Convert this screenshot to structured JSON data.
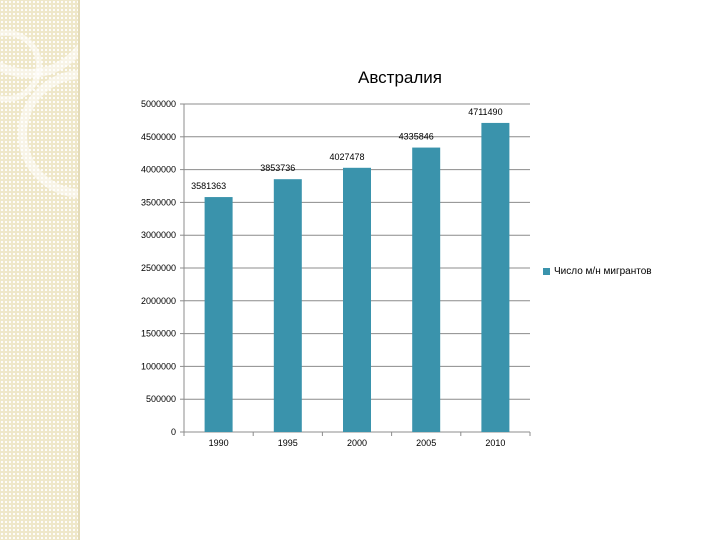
{
  "chart_data": {
    "type": "bar",
    "title": "Австралия",
    "categories": [
      "1990",
      "1995",
      "2000",
      "2005",
      "2010"
    ],
    "series": [
      {
        "name": "Число м/н мигрантов",
        "values": [
          3581363,
          3853736,
          4027478,
          4335846,
          4711490
        ],
        "color": "#3a93ac"
      }
    ],
    "y_ticks": [
      "0",
      "500000",
      "1000000",
      "1500000",
      "2000000",
      "2500000",
      "3000000",
      "3500000",
      "4000000",
      "4500000",
      "5000000"
    ],
    "ylim": [
      0,
      5000000
    ],
    "grid": true,
    "legend_position": "right"
  }
}
